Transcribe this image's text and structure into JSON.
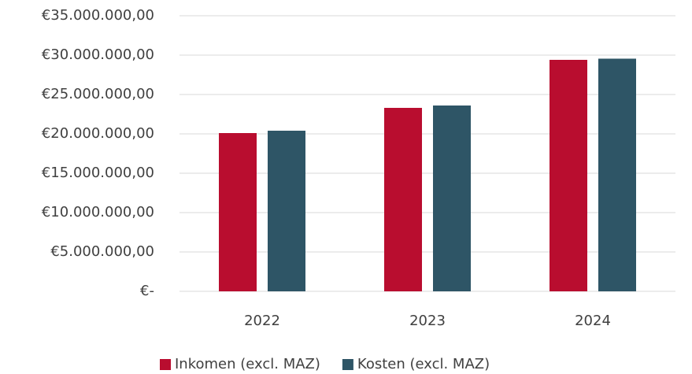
{
  "chart_data": {
    "type": "bar",
    "categories": [
      "2022",
      "2023",
      "2024"
    ],
    "series": [
      {
        "name": "Inkomen (excl. MAZ)",
        "color": "#b90d2f",
        "values": [
          20100000,
          23300000,
          29400000
        ]
      },
      {
        "name": "Kosten (excl. MAZ)",
        "color": "#2e5566",
        "values": [
          20400000,
          23600000,
          29550000
        ]
      }
    ],
    "ylim": [
      0,
      35000000
    ],
    "yticks": [
      {
        "value": 0,
        "label": "€-"
      },
      {
        "value": 5000000,
        "label": "€5.000.000,00"
      },
      {
        "value": 10000000,
        "label": "€10.000.000,00"
      },
      {
        "value": 15000000,
        "label": "€15.000.000,00"
      },
      {
        "value": 20000000,
        "label": "€20.000.000,00"
      },
      {
        "value": 25000000,
        "label": "€25.000.000,00"
      },
      {
        "value": 30000000,
        "label": "€30.000.000,00"
      },
      {
        "value": 35000000,
        "label": "€35.000.000,00"
      }
    ],
    "grid": true,
    "legend": "bottom"
  }
}
